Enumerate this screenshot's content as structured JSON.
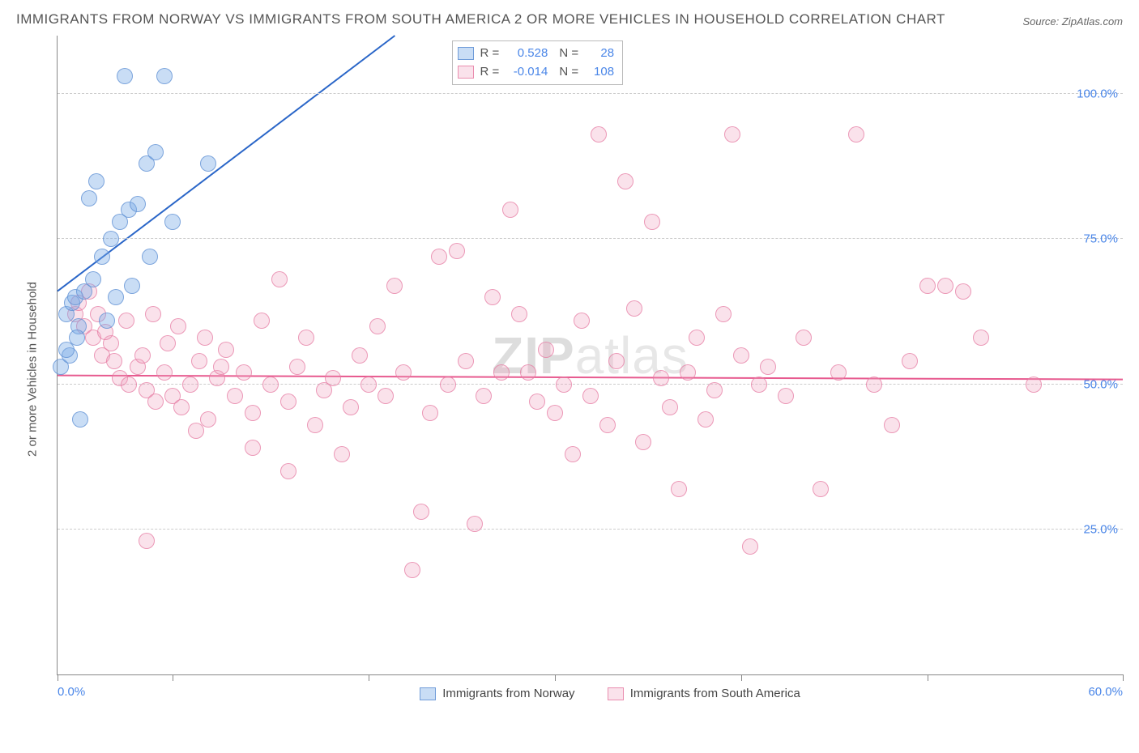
{
  "title": "IMMIGRANTS FROM NORWAY VS IMMIGRANTS FROM SOUTH AMERICA 2 OR MORE VEHICLES IN HOUSEHOLD CORRELATION CHART",
  "source": "Source: ZipAtlas.com",
  "watermark_bold": "ZIP",
  "watermark_rest": "atlas",
  "chart": {
    "type": "scatter",
    "background_color": "#ffffff",
    "grid_color": "#cccccc",
    "xlim": [
      0,
      60
    ],
    "ylim": [
      0,
      110
    ],
    "xtick_positions": [
      0,
      6.5,
      17.5,
      28,
      38.5,
      49,
      60
    ],
    "x_label_low": "0.0%",
    "x_label_high": "60.0%",
    "y_gridlines": [
      25,
      50,
      75,
      100
    ],
    "y_tick_labels": [
      "25.0%",
      "50.0%",
      "75.0%",
      "100.0%"
    ],
    "y_axis_title": "2 or more Vehicles in Household",
    "title_fontsize": 17,
    "label_fontsize": 15,
    "series": {
      "norway": {
        "label": "Immigrants from Norway",
        "fill_color": "rgba(120, 170, 230, 0.4)",
        "stroke_color": "rgba(90, 140, 210, 0.8)",
        "marker_radius": 10,
        "trend": {
          "x1": 0,
          "y1": 66,
          "x2": 19,
          "y2": 110,
          "color": "#2a66c8",
          "width": 2
        },
        "r": "0.528",
        "n": "28",
        "points": [
          [
            0.5,
            62
          ],
          [
            0.8,
            64
          ],
          [
            1.0,
            65
          ],
          [
            1.5,
            66
          ],
          [
            0.2,
            53
          ],
          [
            1.2,
            60
          ],
          [
            2.0,
            68
          ],
          [
            2.5,
            72
          ],
          [
            3.0,
            75
          ],
          [
            3.5,
            78
          ],
          [
            1.8,
            82
          ],
          [
            2.2,
            85
          ],
          [
            4.0,
            80
          ],
          [
            4.5,
            81
          ],
          [
            5.0,
            88
          ],
          [
            5.5,
            90
          ],
          [
            3.8,
            103
          ],
          [
            6.0,
            103
          ],
          [
            8.5,
            88
          ],
          [
            4.2,
            67
          ],
          [
            2.8,
            61
          ],
          [
            1.3,
            44
          ],
          [
            0.7,
            55
          ],
          [
            1.1,
            58
          ],
          [
            6.5,
            78
          ],
          [
            5.2,
            72
          ],
          [
            3.3,
            65
          ],
          [
            0.5,
            56
          ]
        ]
      },
      "south_america": {
        "label": "Immigrants from South America",
        "fill_color": "rgba(240, 160, 190, 0.3)",
        "stroke_color": "rgba(230, 120, 160, 0.8)",
        "marker_radius": 10,
        "trend": {
          "x1": 0,
          "y1": 51.5,
          "x2": 60,
          "y2": 50.8,
          "color": "#e75a8f",
          "width": 2
        },
        "r": "-0.014",
        "n": "108",
        "points": [
          [
            1,
            62
          ],
          [
            1.5,
            60
          ],
          [
            2,
            58
          ],
          [
            2.5,
            55
          ],
          [
            3,
            57
          ],
          [
            1.2,
            64
          ],
          [
            3.5,
            51
          ],
          [
            4,
            50
          ],
          [
            4.5,
            53
          ],
          [
            5,
            49
          ],
          [
            5.5,
            47
          ],
          [
            6,
            52
          ],
          [
            6.5,
            48
          ],
          [
            7,
            46
          ],
          [
            7.5,
            50
          ],
          [
            8,
            54
          ],
          [
            8.5,
            44
          ],
          [
            9,
            51
          ],
          [
            9.5,
            56
          ],
          [
            10,
            48
          ],
          [
            10.5,
            52
          ],
          [
            11,
            45
          ],
          [
            11.5,
            61
          ],
          [
            12,
            50
          ],
          [
            12.5,
            68
          ],
          [
            13,
            47
          ],
          [
            13.5,
            53
          ],
          [
            14,
            58
          ],
          [
            14.5,
            43
          ],
          [
            15,
            49
          ],
          [
            15.5,
            51
          ],
          [
            16,
            38
          ],
          [
            16.5,
            46
          ],
          [
            17,
            55
          ],
          [
            17.5,
            50
          ],
          [
            18,
            60
          ],
          [
            18.5,
            48
          ],
          [
            19,
            67
          ],
          [
            19.5,
            52
          ],
          [
            20,
            18
          ],
          [
            20.5,
            28
          ],
          [
            21,
            45
          ],
          [
            21.5,
            72
          ],
          [
            22,
            50
          ],
          [
            22.5,
            73
          ],
          [
            23,
            54
          ],
          [
            23.5,
            26
          ],
          [
            24,
            48
          ],
          [
            24.5,
            65
          ],
          [
            25,
            52
          ],
          [
            25.5,
            80
          ],
          [
            26,
            62
          ],
          [
            26.5,
            52
          ],
          [
            27,
            47
          ],
          [
            27.5,
            56
          ],
          [
            28,
            45
          ],
          [
            28.5,
            50
          ],
          [
            29,
            38
          ],
          [
            29.5,
            61
          ],
          [
            30,
            48
          ],
          [
            30.5,
            93
          ],
          [
            31,
            43
          ],
          [
            31.5,
            54
          ],
          [
            32,
            85
          ],
          [
            32.5,
            63
          ],
          [
            33,
            40
          ],
          [
            33.5,
            78
          ],
          [
            34,
            51
          ],
          [
            34.5,
            46
          ],
          [
            35,
            32
          ],
          [
            35.5,
            52
          ],
          [
            36,
            58
          ],
          [
            36.5,
            44
          ],
          [
            37,
            49
          ],
          [
            37.5,
            62
          ],
          [
            38,
            93
          ],
          [
            38.5,
            55
          ],
          [
            39,
            22
          ],
          [
            39.5,
            50
          ],
          [
            40,
            53
          ],
          [
            41,
            48
          ],
          [
            42,
            58
          ],
          [
            43,
            32
          ],
          [
            44,
            52
          ],
          [
            45,
            93
          ],
          [
            46,
            50
          ],
          [
            47,
            43
          ],
          [
            48,
            54
          ],
          [
            49,
            67
          ],
          [
            50,
            67
          ],
          [
            51,
            66
          ],
          [
            52,
            58
          ],
          [
            55,
            50
          ],
          [
            1.8,
            66
          ],
          [
            2.3,
            62
          ],
          [
            3.2,
            54
          ],
          [
            4.8,
            55
          ],
          [
            6.2,
            57
          ],
          [
            7.8,
            42
          ],
          [
            9.2,
            53
          ],
          [
            5,
            23
          ],
          [
            11,
            39
          ],
          [
            13,
            35
          ],
          [
            2.7,
            59
          ],
          [
            3.9,
            61
          ],
          [
            5.4,
            62
          ],
          [
            6.8,
            60
          ],
          [
            8.3,
            58
          ]
        ]
      }
    }
  },
  "colors": {
    "text_grey": "#555555",
    "tick_blue": "#4a86e8"
  }
}
